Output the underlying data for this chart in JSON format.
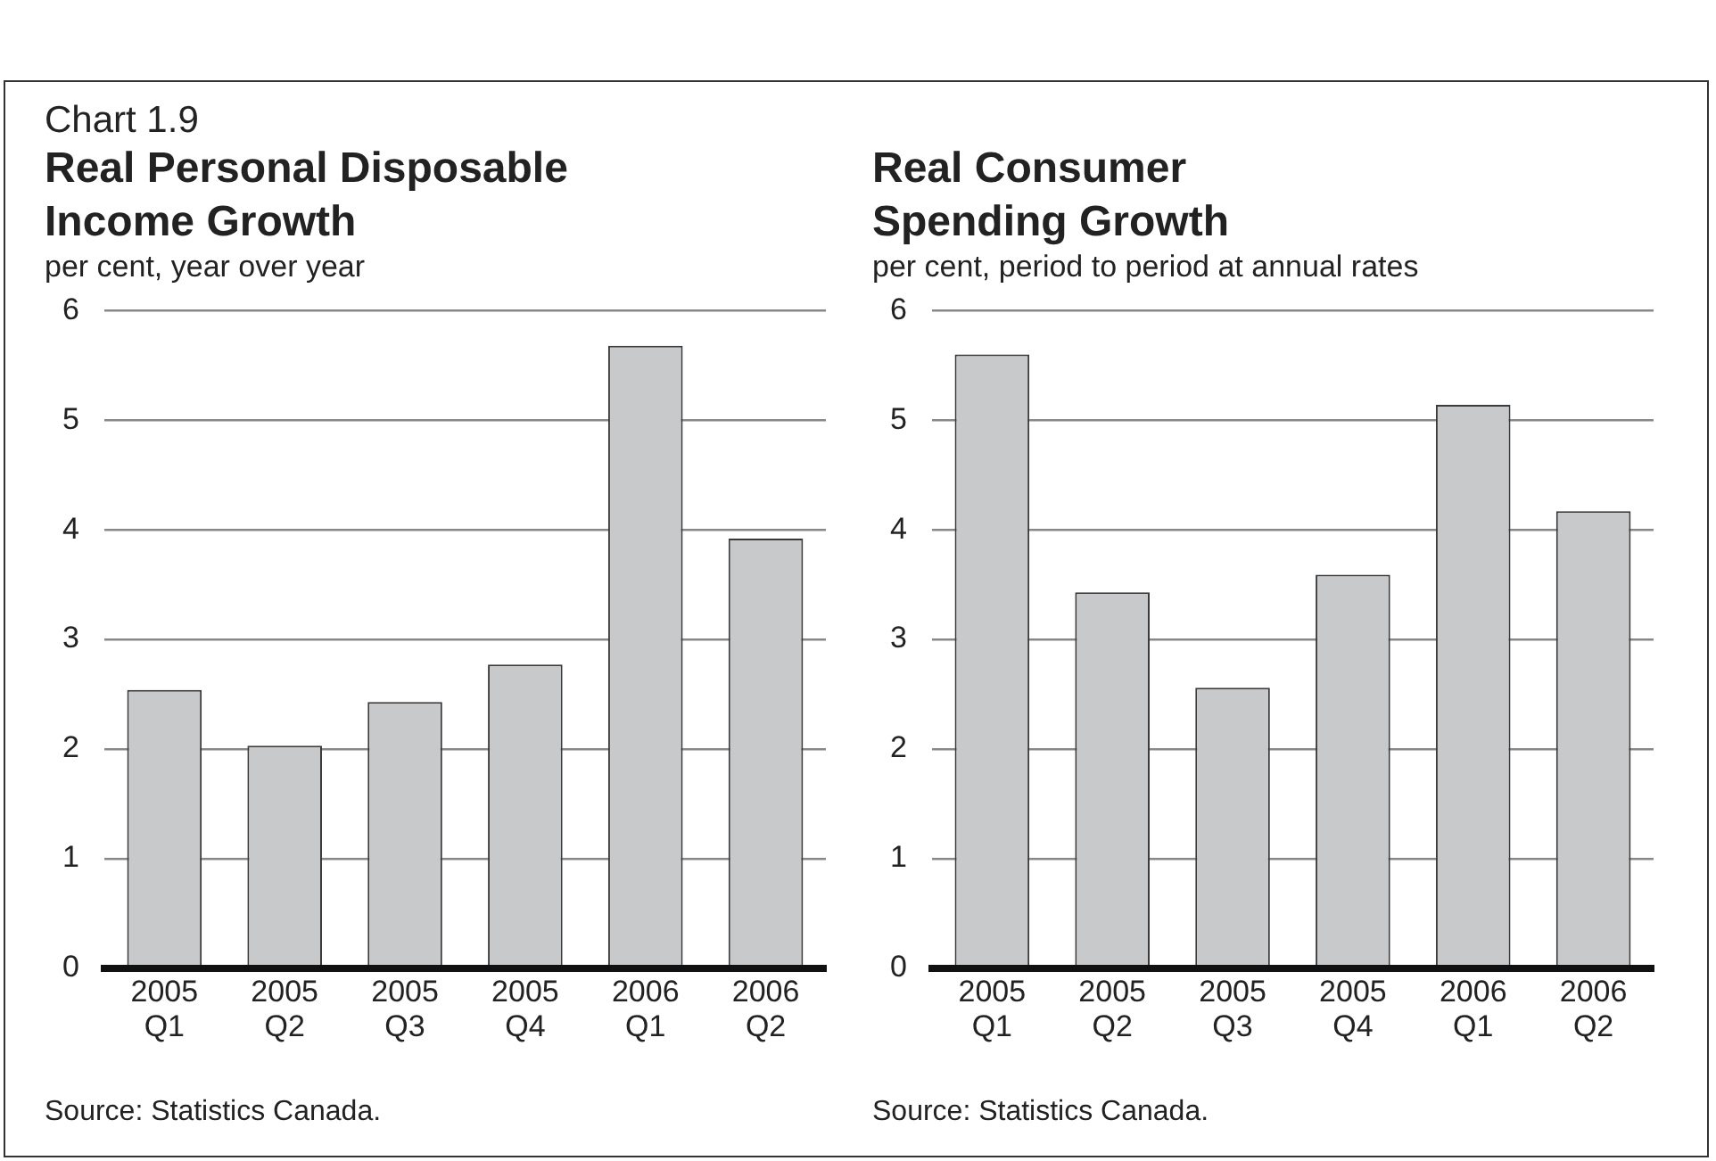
{
  "chart_data": [
    {
      "type": "bar",
      "title": "Real Personal Disposable Income Growth",
      "subtitle": "per cent, year over year",
      "annotations": [
        "Chart 1.9",
        "Source: Statistics Canada."
      ],
      "categories": [
        "2005 Q1",
        "2005 Q2",
        "2005 Q3",
        "2005 Q4",
        "2006 Q1",
        "2006 Q2"
      ],
      "values": [
        2.54,
        2.03,
        2.43,
        2.77,
        5.68,
        3.92
      ],
      "color": "#c8c9cb",
      "ylim": [
        0,
        6
      ],
      "yticks": [
        0,
        1,
        2,
        3,
        4,
        5,
        6
      ],
      "grid": "y"
    },
    {
      "type": "bar",
      "title": "Real Consumer Spending Growth",
      "subtitle": "per cent, period to period at annual rates",
      "annotations": [
        "Source: Statistics Canada."
      ],
      "categories": [
        "2005 Q1",
        "2005 Q2",
        "2005 Q3",
        "2005 Q4",
        "2006 Q1",
        "2006 Q2"
      ],
      "values": [
        5.6,
        3.43,
        2.56,
        3.59,
        5.14,
        4.17
      ],
      "color": "#c8c9cb",
      "ylim": [
        0,
        6
      ],
      "yticks": [
        0,
        1,
        2,
        3,
        4,
        5,
        6
      ],
      "grid": "y"
    }
  ]
}
